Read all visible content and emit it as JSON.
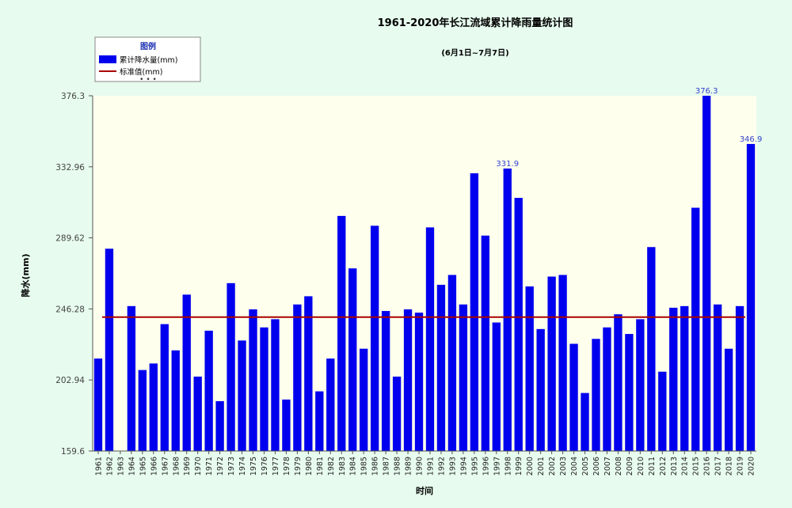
{
  "chart_data": {
    "type": "bar",
    "title": "1961-2020年长江流域累计降雨量统计图",
    "subtitle": "(6月1日~7月7日)",
    "xlabel": "时间",
    "ylabel": "降水(mm)",
    "ylim": [
      159.6,
      376.3
    ],
    "yticks": [
      "376.3",
      "332.96",
      "289.62",
      "246.28",
      "202.94",
      "159.6"
    ],
    "categories": [
      "1961",
      "1962",
      "1963",
      "1964",
      "1965",
      "1966",
      "1967",
      "1968",
      "1969",
      "1970",
      "1971",
      "1972",
      "1973",
      "1974",
      "1975",
      "1976",
      "1977",
      "1978",
      "1979",
      "1980",
      "1981",
      "1982",
      "1983",
      "1984",
      "1985",
      "1986",
      "1987",
      "1988",
      "1989",
      "1990",
      "1991",
      "1992",
      "1993",
      "1994",
      "1995",
      "1996",
      "1997",
      "1998",
      "1999",
      "2000",
      "2001",
      "2002",
      "2003",
      "2004",
      "2005",
      "2006",
      "2007",
      "2008",
      "2009",
      "2010",
      "2011",
      "2012",
      "2013",
      "2014",
      "2015",
      "2016",
      "2017",
      "2018",
      "2019",
      "2020"
    ],
    "series": [
      {
        "name": "累计降水量(mm)",
        "color": "#0000ee",
        "values": [
          216,
          283,
          159.6,
          248,
          209,
          213,
          237,
          221,
          255,
          205,
          233,
          190,
          262,
          227,
          246,
          235,
          240,
          191,
          249,
          254,
          196,
          216,
          303,
          271,
          222,
          297,
          245,
          205,
          246,
          244,
          296,
          261,
          267,
          249,
          329,
          291,
          238,
          331.9,
          314,
          260,
          234,
          266,
          267,
          225,
          195,
          228,
          235,
          243,
          231,
          240,
          284,
          208,
          247,
          248,
          308,
          376.3,
          249,
          222,
          248,
          346.9
        ]
      }
    ],
    "reference_line": {
      "name": "标准值(mm)",
      "value": 241.3,
      "color": "#aa0000"
    },
    "data_labels": [
      {
        "category": "1998",
        "text": "331.9"
      },
      {
        "category": "2016",
        "text": "376.3"
      },
      {
        "category": "2020",
        "text": "346.9"
      }
    ],
    "legend": {
      "title": "图例",
      "placement": "top-left",
      "items": [
        "累计降水量(mm)",
        "标准值(mm)"
      ]
    },
    "grid": false,
    "plot_background": "#ffffee"
  }
}
